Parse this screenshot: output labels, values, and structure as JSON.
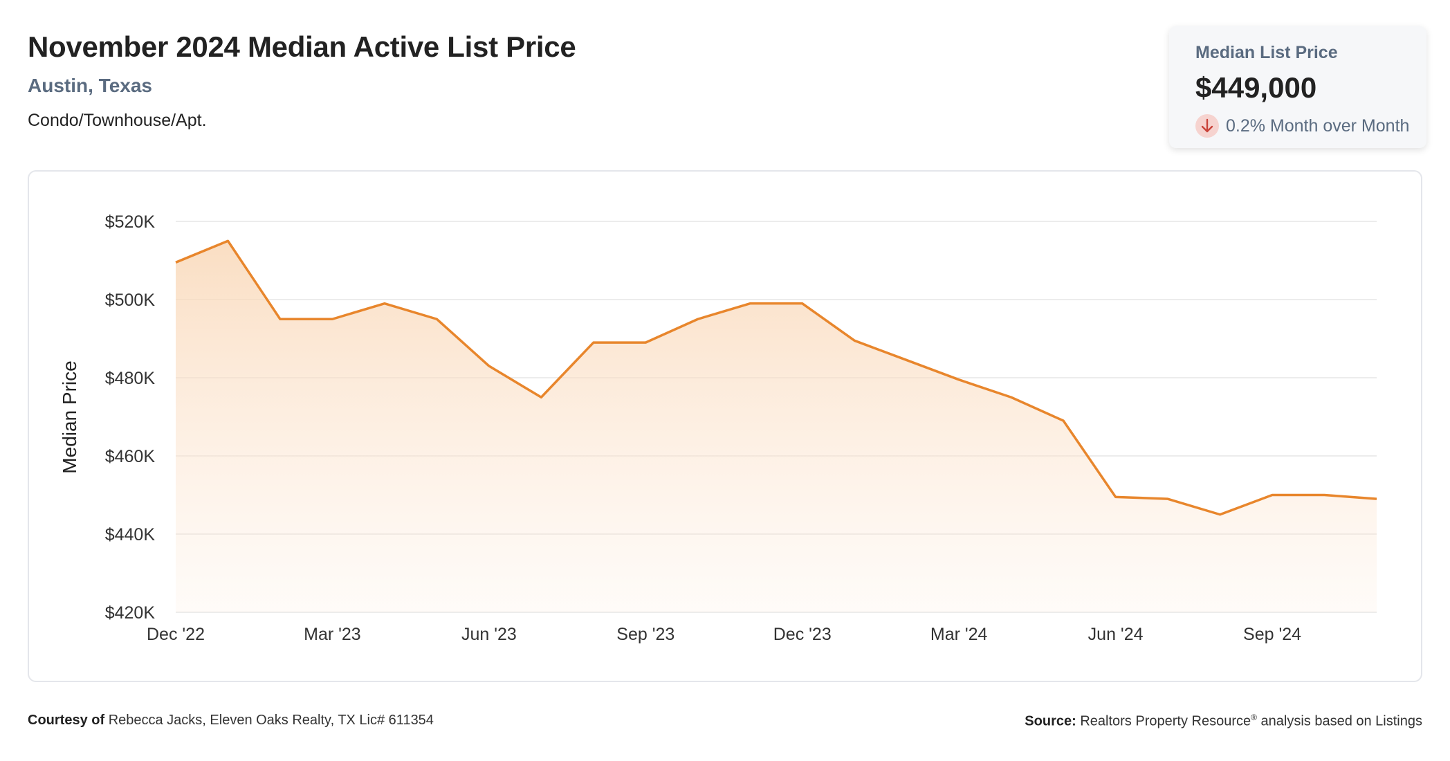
{
  "header": {
    "title": "November 2024 Median Active List Price",
    "location": "Austin, Texas",
    "property_type": "Condo/Townhouse/Apt."
  },
  "stat_card": {
    "label": "Median List Price",
    "value": "$449,000",
    "change_text": "0.2% Month over Month",
    "change_direction": "down",
    "change_icon": "arrow-down-icon"
  },
  "footer": {
    "courtesy_label": "Courtesy of",
    "courtesy_text": "Rebecca Jacks, Eleven Oaks Realty, TX Lic# 611354",
    "source_label": "Source:",
    "source_text": "Realtors Property Resource",
    "source_reg": "®",
    "source_suffix": "analysis based on Listings"
  },
  "colors": {
    "line": "#e8862c",
    "fill_top": "#f9d8b8",
    "grid": "#e6e6e6",
    "down_badge": "#f6d3cf",
    "down_arrow": "#c9433a"
  },
  "chart_data": {
    "type": "area",
    "title": "",
    "xlabel": "",
    "ylabel": "Median Price",
    "x": [
      "2022-12",
      "2023-01",
      "2023-02",
      "2023-03",
      "2023-04",
      "2023-05",
      "2023-06",
      "2023-07",
      "2023-08",
      "2023-09",
      "2023-10",
      "2023-11",
      "2023-12",
      "2024-01",
      "2024-02",
      "2024-03",
      "2024-04",
      "2024-05",
      "2024-06",
      "2024-07",
      "2024-08",
      "2024-09",
      "2024-10",
      "2024-11"
    ],
    "series": [
      {
        "name": "",
        "values": [
          509500,
          515000,
          495000,
          495000,
          499000,
          495000,
          483000,
          475000,
          489000,
          489000,
          495000,
          499000,
          499000,
          489500,
          484500,
          479500,
          475000,
          469000,
          449500,
          449000,
          445000,
          450000,
          450000,
          449000
        ]
      }
    ],
    "x_tick_labels": [
      "Dec '22",
      "Mar '23",
      "Jun '23",
      "Sep '23",
      "Dec '23",
      "Mar '24",
      "Jun '24",
      "Sep '24"
    ],
    "x_tick_positions": [
      "2022-12",
      "2023-03",
      "2023-06",
      "2023-09",
      "2023-12",
      "2024-03",
      "2024-06",
      "2024-09"
    ],
    "y_ticks": [
      420000,
      440000,
      460000,
      480000,
      500000,
      520000
    ],
    "y_tick_labels": [
      "$420K",
      "$440K",
      "$460K",
      "$480K",
      "$500K",
      "$520K"
    ],
    "ylim": [
      420000,
      520000
    ],
    "grid": true,
    "legend": "none"
  }
}
